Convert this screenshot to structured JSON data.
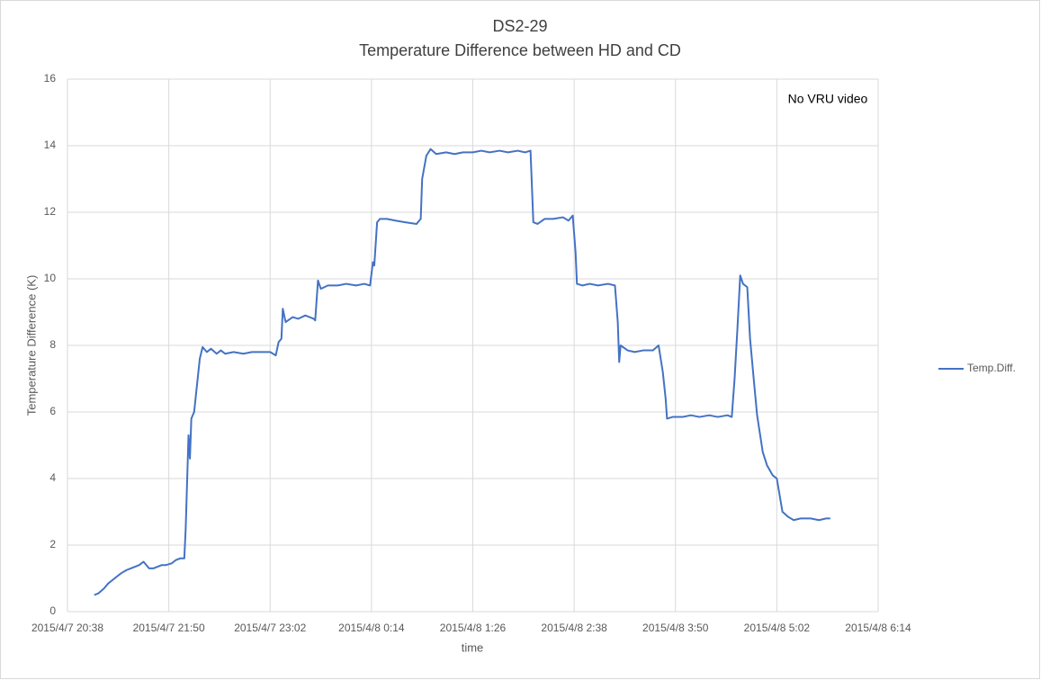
{
  "chart_data": {
    "type": "line",
    "title": "DS2-29",
    "subtitle": "Temperature Difference between HD and CD",
    "x_label": "time",
    "y_label": "Temperature Difference (K)",
    "annotation": "No VRU video",
    "grid": true,
    "legend": "right",
    "xlim": [
      "2015/4/7 20:38",
      "2015/4/8 6:14"
    ],
    "xticks": [
      "2015/4/7 20:38",
      "2015/4/7 21:50",
      "2015/4/7 23:02",
      "2015/4/8 0:14",
      "2015/4/8 1:26",
      "2015/4/8 2:38",
      "2015/4/8 3:50",
      "2015/4/8 5:02",
      "2015/4/8 6:14"
    ],
    "ylim": [
      0,
      16
    ],
    "yticks": [
      0,
      2,
      4,
      6,
      8,
      10,
      12,
      14,
      16
    ],
    "x": [
      "2015/4/7 20:57",
      "2015/4/7 21:00",
      "2015/4/7 21:04",
      "2015/4/7 21:07",
      "2015/4/7 21:10",
      "2015/4/7 21:13",
      "2015/4/7 21:16",
      "2015/4/7 21:20",
      "2015/4/7 21:23",
      "2015/4/7 21:26",
      "2015/4/7 21:29",
      "2015/4/7 21:32",
      "2015/4/7 21:36",
      "2015/4/7 21:39",
      "2015/4/7 21:42",
      "2015/4/7 21:45",
      "2015/4/7 21:48",
      "2015/4/7 21:52",
      "2015/4/7 21:55",
      "2015/4/7 21:58",
      "2015/4/7 22:01",
      "2015/4/7 22:02",
      "2015/4/7 22:04",
      "2015/4/7 22:05",
      "2015/4/7 22:06",
      "2015/4/7 22:08",
      "2015/4/7 22:10",
      "2015/4/7 22:12",
      "2015/4/7 22:14",
      "2015/4/7 22:17",
      "2015/4/7 22:20",
      "2015/4/7 22:24",
      "2015/4/7 22:27",
      "2015/4/7 22:30",
      "2015/4/7 22:36",
      "2015/4/7 22:43",
      "2015/4/7 22:49",
      "2015/4/7 22:56",
      "2015/4/7 23:02",
      "2015/4/7 23:06",
      "2015/4/7 23:08",
      "2015/4/7 23:10",
      "2015/4/7 23:11",
      "2015/4/7 23:13",
      "2015/4/7 23:18",
      "2015/4/7 23:22",
      "2015/4/7 23:27",
      "2015/4/7 23:33",
      "2015/4/7 23:34",
      "2015/4/7 23:36",
      "2015/4/7 23:38",
      "2015/4/7 23:43",
      "2015/4/7 23:50",
      "2015/4/7 23:56",
      "2015/4/8 0:03",
      "2015/4/8 0:09",
      "2015/4/8 0:13",
      "2015/4/8 0:15",
      "2015/4/8 0:16",
      "2015/4/8 0:18",
      "2015/4/8 0:20",
      "2015/4/8 0:25",
      "2015/4/8 0:31",
      "2015/4/8 0:38",
      "2015/4/8 0:46",
      "2015/4/8 0:49",
      "2015/4/8 0:50",
      "2015/4/8 0:53",
      "2015/4/8 0:56",
      "2015/4/8 1:00",
      "2015/4/8 1:07",
      "2015/4/8 1:13",
      "2015/4/8 1:19",
      "2015/4/8 1:26",
      "2015/4/8 1:32",
      "2015/4/8 1:38",
      "2015/4/8 1:45",
      "2015/4/8 1:51",
      "2015/4/8 1:58",
      "2015/4/8 2:03",
      "2015/4/8 2:07",
      "2015/4/8 2:09",
      "2015/4/8 2:12",
      "2015/4/8 2:17",
      "2015/4/8 2:23",
      "2015/4/8 2:30",
      "2015/4/8 2:34",
      "2015/4/8 2:37",
      "2015/4/8 2:39",
      "2015/4/8 2:40",
      "2015/4/8 2:44",
      "2015/4/8 2:49",
      "2015/4/8 2:55",
      "2015/4/8 3:02",
      "2015/4/8 3:07",
      "2015/4/8 3:09",
      "2015/4/8 3:10",
      "2015/4/8 3:11",
      "2015/4/8 3:16",
      "2015/4/8 3:21",
      "2015/4/8 3:27",
      "2015/4/8 3:34",
      "2015/4/8 3:38",
      "2015/4/8 3:41",
      "2015/4/8 3:43",
      "2015/4/8 3:44",
      "2015/4/8 3:48",
      "2015/4/8 3:55",
      "2015/4/8 4:01",
      "2015/4/8 4:07",
      "2015/4/8 4:14",
      "2015/4/8 4:20",
      "2015/4/8 4:27",
      "2015/4/8 4:30",
      "2015/4/8 4:32",
      "2015/4/8 4:34",
      "2015/4/8 4:36",
      "2015/4/8 4:38",
      "2015/4/8 4:41",
      "2015/4/8 4:43",
      "2015/4/8 4:46",
      "2015/4/8 4:48",
      "2015/4/8 4:52",
      "2015/4/8 4:55",
      "2015/4/8 4:59",
      "2015/4/8 5:02",
      "2015/4/8 5:04",
      "2015/4/8 5:06",
      "2015/4/8 5:10",
      "2015/4/8 5:14",
      "2015/4/8 5:19",
      "2015/4/8 5:26",
      "2015/4/8 5:32",
      "2015/4/8 5:37",
      "2015/4/8 5:40"
    ],
    "series": [
      {
        "name": "Temp.Diff.",
        "color": "#4472c4",
        "values": [
          0.5,
          0.55,
          0.7,
          0.85,
          0.95,
          1.05,
          1.15,
          1.25,
          1.3,
          1.35,
          1.4,
          1.5,
          1.3,
          1.3,
          1.35,
          1.4,
          1.4,
          1.45,
          1.55,
          1.6,
          1.6,
          2.5,
          5.3,
          4.6,
          5.8,
          6.0,
          6.8,
          7.6,
          7.95,
          7.8,
          7.9,
          7.75,
          7.85,
          7.75,
          7.8,
          7.75,
          7.8,
          7.8,
          7.8,
          7.7,
          8.1,
          8.2,
          9.1,
          8.7,
          8.85,
          8.8,
          8.9,
          8.8,
          8.75,
          9.95,
          9.7,
          9.8,
          9.8,
          9.85,
          9.8,
          9.85,
          9.8,
          10.5,
          10.4,
          11.7,
          11.8,
          11.8,
          11.75,
          11.7,
          11.65,
          11.8,
          13.0,
          13.7,
          13.9,
          13.75,
          13.8,
          13.75,
          13.8,
          13.8,
          13.85,
          13.8,
          13.85,
          13.8,
          13.85,
          13.8,
          13.85,
          11.7,
          11.65,
          11.8,
          11.8,
          11.85,
          11.75,
          11.9,
          10.8,
          9.85,
          9.8,
          9.85,
          9.8,
          9.85,
          9.8,
          8.7,
          7.5,
          8.0,
          7.85,
          7.8,
          7.85,
          7.85,
          8.0,
          7.2,
          6.4,
          5.8,
          5.85,
          5.85,
          5.9,
          5.85,
          5.9,
          5.85,
          5.9,
          5.85,
          7.0,
          8.5,
          10.1,
          9.85,
          9.75,
          8.2,
          6.8,
          5.9,
          4.8,
          4.4,
          4.1,
          4.0,
          3.5,
          3.0,
          2.85,
          2.75,
          2.8,
          2.8,
          2.75,
          2.8,
          2.8
        ]
      }
    ]
  }
}
